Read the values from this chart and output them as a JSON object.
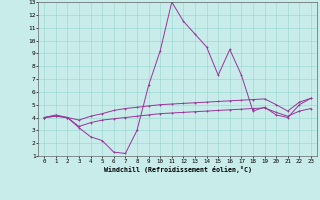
{
  "xlabel": "Windchill (Refroidissement éolien,°C)",
  "xlim": [
    -0.5,
    23.5
  ],
  "ylim": [
    1,
    13
  ],
  "yticks": [
    1,
    2,
    3,
    4,
    5,
    6,
    7,
    8,
    9,
    10,
    11,
    12,
    13
  ],
  "xticks": [
    0,
    1,
    2,
    3,
    4,
    5,
    6,
    7,
    8,
    9,
    10,
    11,
    12,
    13,
    14,
    15,
    16,
    17,
    18,
    19,
    20,
    21,
    22,
    23
  ],
  "background_color": "#c8ecea",
  "grid_color": "#a0d8d4",
  "line_color": "#993399",
  "line1_x": [
    0,
    1,
    2,
    3,
    4,
    5,
    6,
    7,
    8,
    9,
    10,
    11,
    12,
    13,
    14,
    15,
    16,
    17,
    18,
    19,
    20,
    21,
    22,
    23
  ],
  "line1_y": [
    4.0,
    4.1,
    4.0,
    3.3,
    3.6,
    3.8,
    3.9,
    4.0,
    4.1,
    4.2,
    4.3,
    4.35,
    4.4,
    4.45,
    4.5,
    4.55,
    4.6,
    4.65,
    4.7,
    4.75,
    4.4,
    4.1,
    4.5,
    4.7
  ],
  "line2_x": [
    0,
    1,
    2,
    3,
    4,
    5,
    6,
    7,
    8,
    9,
    10,
    11,
    12,
    13,
    14,
    15,
    16,
    17,
    18,
    19,
    20,
    21,
    22,
    23
  ],
  "line2_y": [
    4.0,
    4.2,
    4.0,
    3.2,
    2.5,
    2.2,
    1.3,
    1.2,
    3.0,
    6.5,
    9.2,
    13.0,
    11.5,
    10.5,
    9.5,
    7.3,
    9.3,
    7.3,
    4.5,
    4.8,
    4.2,
    4.0,
    5.0,
    5.5
  ],
  "line3_x": [
    0,
    1,
    2,
    3,
    4,
    5,
    6,
    7,
    8,
    9,
    10,
    11,
    12,
    13,
    14,
    15,
    16,
    17,
    18,
    19,
    20,
    21,
    22,
    23
  ],
  "line3_y": [
    4.0,
    4.1,
    4.0,
    3.8,
    4.1,
    4.3,
    4.55,
    4.7,
    4.8,
    4.9,
    5.0,
    5.05,
    5.1,
    5.15,
    5.2,
    5.25,
    5.3,
    5.35,
    5.4,
    5.45,
    5.0,
    4.5,
    5.2,
    5.5
  ]
}
